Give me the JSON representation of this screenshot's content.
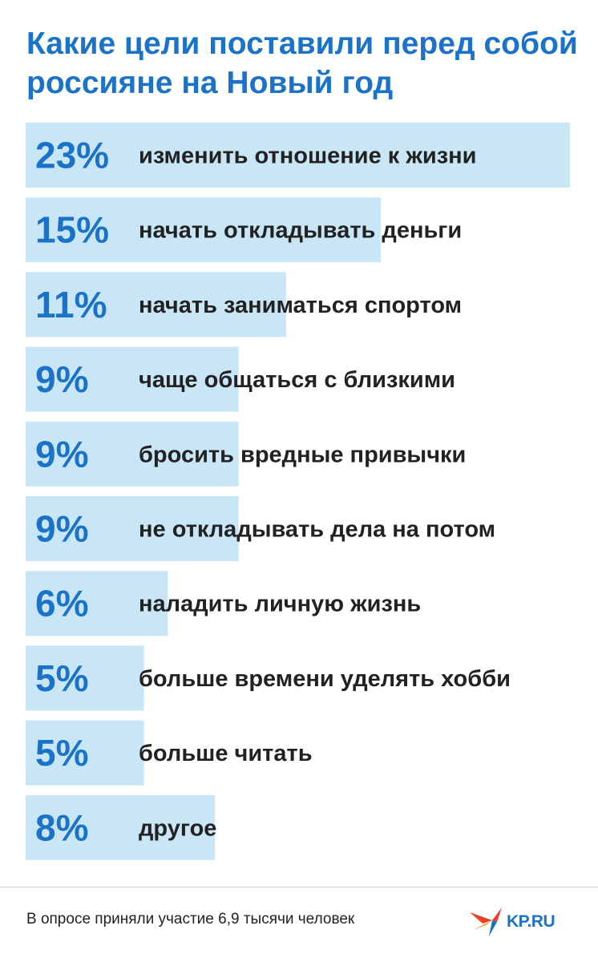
{
  "title": "Какие цели поставили перед собой россияне на Новый год",
  "colors": {
    "accent": "#1a73c9",
    "bar": "#c9e6f6",
    "text": "#222222"
  },
  "chart_data": {
    "type": "bar",
    "orientation": "horizontal",
    "categories": [
      "изменить отношение к жизни",
      "начать откладывать деньги",
      "начать заниматься спортом",
      "чаще общаться с близкими",
      "бросить вредные привычки",
      "не откладывать дела на потом",
      "наладить личную жизнь",
      "больше времени уделять хобби",
      "больше читать",
      "другое"
    ],
    "values": [
      23,
      15,
      11,
      9,
      9,
      9,
      6,
      5,
      5,
      8
    ],
    "value_labels": [
      "23%",
      "15%",
      "11%",
      "9%",
      "9%",
      "9%",
      "6%",
      "5%",
      "5%",
      "8%"
    ],
    "unit": "%"
  },
  "footer": {
    "note": "В опросе приняли участие 6,9 тысячи человек",
    "logo_text": "KP.RU",
    "logo_icon": "kp-bird-icon"
  }
}
